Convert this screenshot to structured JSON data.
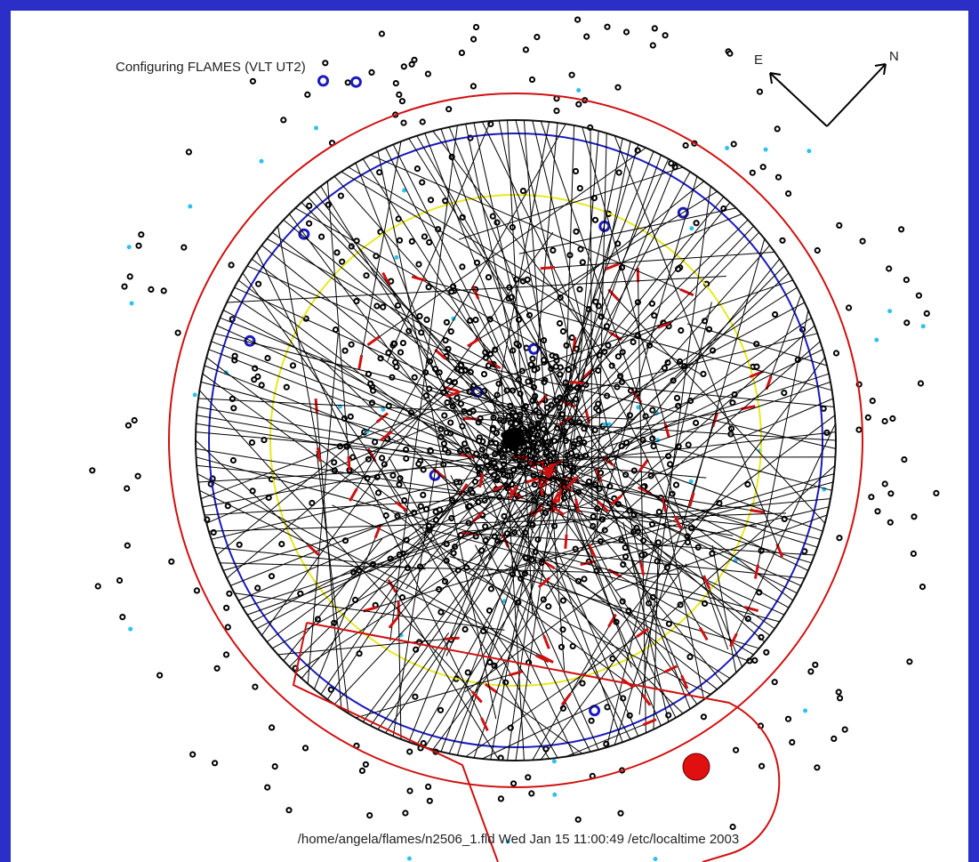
{
  "header": {
    "title": "Configuring FLAMES (VLT UT2)"
  },
  "compass": {
    "east": "E",
    "north": "N"
  },
  "footer": {
    "file_info": "/home/angela/flames/n2506_1.fld Wed Jan 15 11:00:49 /etc/localtime 2003"
  }
}
